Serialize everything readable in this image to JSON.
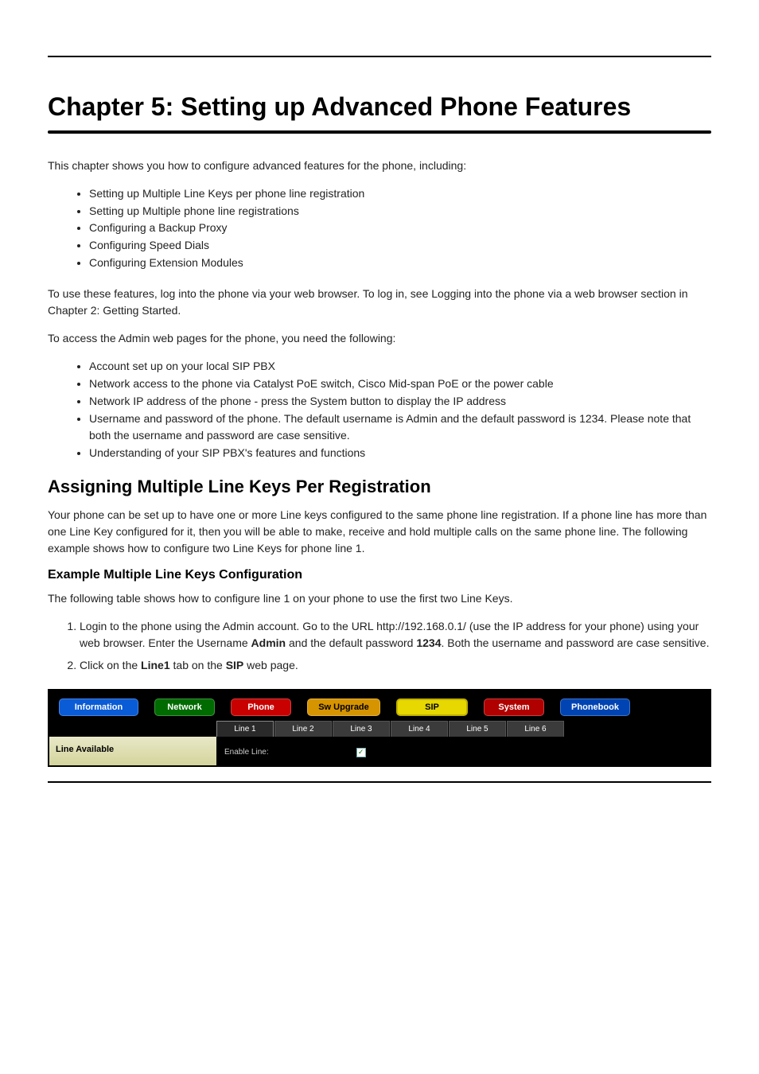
{
  "chapter": {
    "title": "Chapter 5: Setting up Advanced Phone Features",
    "intro": "This chapter shows you how to configure advanced features for the phone, including:"
  },
  "featureList1": [
    "Setting up Multiple Line Keys per phone line registration",
    "Setting up Multiple phone line registrations",
    "Configuring a Backup Proxy",
    "Configuring Speed Dials",
    "Configuring Extension Modules"
  ],
  "adminIntro": "To use these features, log into the phone via your web browser. To log in, see Logging into the phone via a web browser section in Chapter 2: Getting Started.",
  "adminList": [
    "Account set up on your local SIP PBX",
    "Network access to the phone via Catalyst PoE switch, Cisco Mid-span PoE or the power cable",
    "Network IP address of the phone - press the System button to display the IP address",
    "Username and password of the phone. The default username is Admin and the default password is 1234. Please note that both the username and password are case sensitive.",
    "Understanding of your SIP PBX's features and functions"
  ],
  "section2": {
    "title": "Assigning Multiple Line Keys Per Registration",
    "p1": "Your phone can be set up to have one or more Line keys configured to the same phone line registration. If a phone line has more than one Line Key configured for it, then you will be able to make, receive and hold multiple calls on the same phone line. The following example shows how to configure two Line Keys for phone line 1."
  },
  "example": {
    "title": "Example Multiple Line Keys Configuration",
    "p1": "The following table shows how to configure line 1 on your phone to use the first two Line Keys.",
    "steps": [
      {
        "pre": "Login to the phone using the Admin account. Go to the URL http://192.168.0.1/ (use the IP address for your phone) using your web browser. Enter the Username ",
        "b1": "Admin",
        "mid": " and the default password ",
        "b2": "1234",
        "post": ". Both the username and password are case sensitive."
      },
      {
        "pre": "Click on the ",
        "b1": "Line1",
        "mid": " tab on the ",
        "b2": "SIP",
        "post": " web page."
      }
    ]
  },
  "adminUI": {
    "tabs": [
      "Information",
      "Network",
      "Phone",
      "Sw Upgrade",
      "SIP",
      "System",
      "Phonebook"
    ],
    "subtabs": [
      "Line 1",
      "Line 2",
      "Line 3",
      "Line 4",
      "Line 5",
      "Line 6"
    ],
    "sideLabel": "Line Available",
    "fieldLabel": "Enable Line:",
    "checked": "✓"
  },
  "colors": {
    "tabInfo": "#0a5bd6",
    "tabNetwork": "#006b00",
    "tabPhone": "#c80000",
    "tabSwu": "#d69400",
    "tabSip": "#e6d800",
    "tabSystem": "#b00000",
    "tabPhonebook": "#0044b3",
    "black": "#000000"
  }
}
